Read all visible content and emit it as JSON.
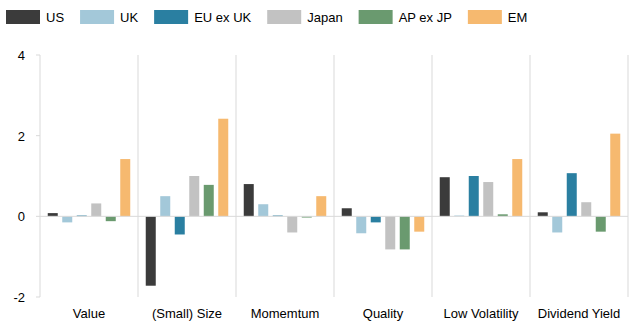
{
  "chart_data": {
    "type": "bar",
    "categories": [
      "Value",
      "(Small) Size",
      "Momemtum",
      "Quality",
      "Low Volatility",
      "Dividend Yield"
    ],
    "series": [
      {
        "name": "US",
        "color": "#3b3b3b",
        "values": [
          0.08,
          -1.72,
          0.8,
          0.2,
          0.97,
          0.1
        ]
      },
      {
        "name": "UK",
        "color": "#a3c8d9",
        "values": [
          -0.15,
          0.5,
          0.3,
          -0.42,
          0.02,
          -0.4
        ]
      },
      {
        "name": "EU ex UK",
        "color": "#2a7fa1",
        "values": [
          0.02,
          -0.45,
          0.02,
          -0.15,
          1.0,
          1.07
        ]
      },
      {
        "name": "Japan",
        "color": "#c2c2c2",
        "values": [
          0.32,
          1.0,
          -0.4,
          -0.82,
          0.85,
          0.35
        ]
      },
      {
        "name": "AP ex JP",
        "color": "#6a9a6f",
        "values": [
          -0.12,
          0.78,
          -0.03,
          -0.82,
          0.05,
          -0.38
        ]
      },
      {
        "name": "EM",
        "color": "#f6b96f",
        "values": [
          1.42,
          2.42,
          0.5,
          -0.38,
          1.42,
          2.05
        ]
      }
    ],
    "ylim": [
      -2,
      4
    ],
    "yticks": [
      -2,
      0,
      2,
      4
    ],
    "grid": false,
    "legend": "top"
  }
}
